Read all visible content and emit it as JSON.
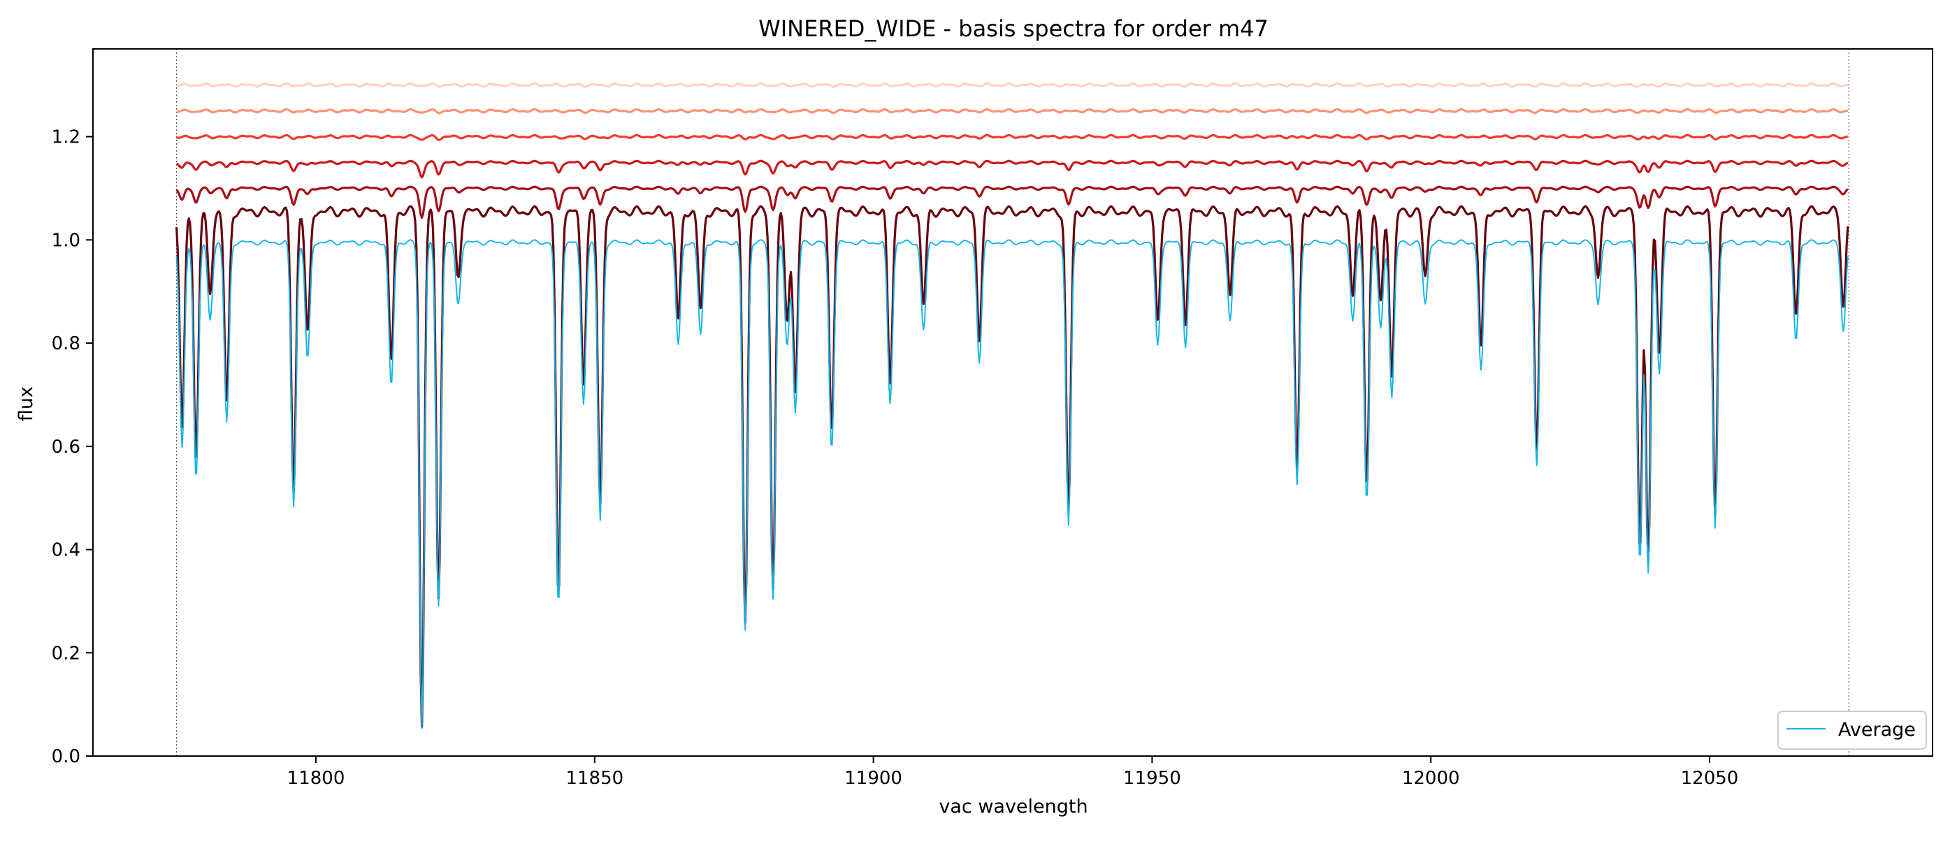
{
  "chart_data": {
    "type": "line",
    "title": "WINERED_WIDE - basis spectra for order m47",
    "xlabel": "vac wavelength",
    "ylabel": "flux",
    "xlim": [
      11760,
      12090
    ],
    "ylim": [
      0.0,
      1.37
    ],
    "x_ticks": [
      11800,
      11850,
      11900,
      11950,
      12000,
      12050
    ],
    "y_ticks": [
      0.0,
      0.2,
      0.4,
      0.6,
      0.8,
      1.0,
      1.2
    ],
    "x_tick_labels": [
      "11800",
      "11850",
      "11900",
      "11950",
      "12000",
      "12050"
    ],
    "y_tick_labels": [
      "0.0",
      "0.2",
      "0.4",
      "0.6",
      "0.8",
      "1.0",
      "1.2"
    ],
    "vertical_markers": [
      11775,
      12075
    ],
    "grid": false,
    "legend": {
      "placement": "lower-right",
      "entries": [
        "Average"
      ]
    },
    "absorption_lines": [
      [
        11776.0,
        0.4
      ],
      [
        11778.5,
        0.46
      ],
      [
        11781.0,
        0.15
      ],
      [
        11784.0,
        0.35
      ],
      [
        11796.0,
        0.51
      ],
      [
        11798.5,
        0.23
      ],
      [
        11813.5,
        0.28
      ],
      [
        11819.0,
        0.94
      ],
      [
        11822.0,
        0.7
      ],
      [
        11825.5,
        0.12
      ],
      [
        11843.5,
        0.71
      ],
      [
        11848.0,
        0.31
      ],
      [
        11851.0,
        0.54
      ],
      [
        11865.0,
        0.2
      ],
      [
        11869.0,
        0.18
      ],
      [
        11877.0,
        0.75
      ],
      [
        11882.0,
        0.69
      ],
      [
        11884.5,
        0.2
      ],
      [
        11886.0,
        0.33
      ],
      [
        11892.5,
        0.4
      ],
      [
        11903.0,
        0.31
      ],
      [
        11909.0,
        0.17
      ],
      [
        11919.0,
        0.23
      ],
      [
        11935.0,
        0.55
      ],
      [
        11951.0,
        0.2
      ],
      [
        11956.0,
        0.2
      ],
      [
        11964.0,
        0.15
      ],
      [
        11976.0,
        0.47
      ],
      [
        11986.0,
        0.15
      ],
      [
        11988.5,
        0.5
      ],
      [
        11991.0,
        0.17
      ],
      [
        11993.0,
        0.3
      ],
      [
        11999.0,
        0.12
      ],
      [
        12009.0,
        0.25
      ],
      [
        12019.0,
        0.43
      ],
      [
        12030.0,
        0.12
      ],
      [
        12037.5,
        0.62
      ],
      [
        12039.0,
        0.64
      ],
      [
        12041.0,
        0.25
      ],
      [
        12051.0,
        0.55
      ],
      [
        12065.5,
        0.19
      ],
      [
        12074.0,
        0.17
      ]
    ],
    "series": [
      {
        "name": "Average",
        "color": "#12b4e6",
        "stroke_width": 1.2,
        "x_range": [
          11775,
          12075
        ],
        "offset": 0.0,
        "depth_scale": 1.0,
        "continuum": 0.995
      },
      {
        "color": "#67000d",
        "stroke_width": 2.0,
        "x_range": [
          11775,
          12075
        ],
        "offset": 0.0,
        "depth_scale": 1.06,
        "continuum": 1.055
      },
      {
        "color": "#a50f15",
        "stroke_width": 2.0,
        "x_range": [
          11775,
          12075
        ],
        "offset": 1.1,
        "depth_scale": 0.06,
        "continuum": 1.1
      },
      {
        "color": "#cb181d",
        "stroke_width": 2.0,
        "x_range": [
          11775,
          12075
        ],
        "offset": 1.15,
        "depth_scale": 0.03,
        "continuum": 1.15
      },
      {
        "color": "#ef3b2c",
        "stroke_width": 2.0,
        "x_range": [
          11775,
          12075
        ],
        "offset": 1.2,
        "depth_scale": 0.006,
        "continuum": 1.2
      },
      {
        "color": "#fc9272",
        "stroke_width": 2.0,
        "x_range": [
          11775,
          12075
        ],
        "offset": 1.25,
        "depth_scale": 0.003,
        "continuum": 1.25
      },
      {
        "color": "#fcd2bf",
        "stroke_width": 2.0,
        "x_range": [
          11775,
          12075
        ],
        "offset": 1.3,
        "depth_scale": 0.001,
        "continuum": 1.3
      }
    ]
  }
}
